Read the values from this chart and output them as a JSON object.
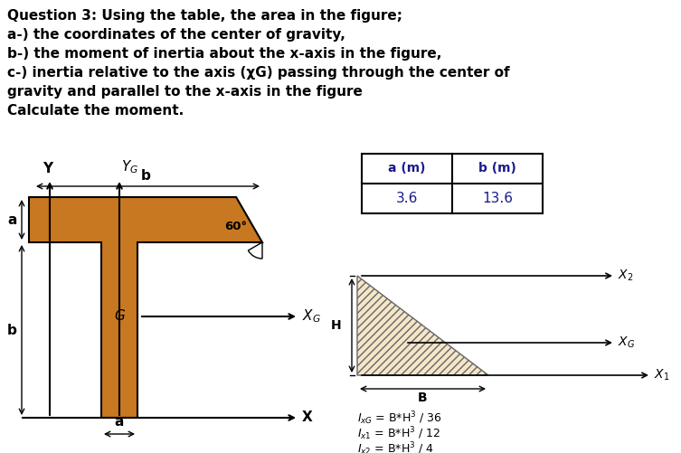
{
  "title_lines": [
    "Question 3: Using the table, the area in the figure;",
    "a-) the coordinates of the center of gravity,",
    "b-) the moment of inertia about the x-axis in the figure,",
    "c-) inertia relative to the axis (χG) passing through the center of",
    "gravity and parallel to the x-axis in the figure",
    "Calculate the moment."
  ],
  "t_shape_color": "#C87820",
  "t_shape_outline": "#000000",
  "table_headers": [
    "a (m)",
    "b (m)"
  ],
  "table_values": [
    "3.6",
    "13.6"
  ],
  "table_header_color": "#1a1a8c",
  "triangle_fill": "#f5e6c8",
  "triangle_hatch": "////",
  "bg_color": "#ffffff"
}
